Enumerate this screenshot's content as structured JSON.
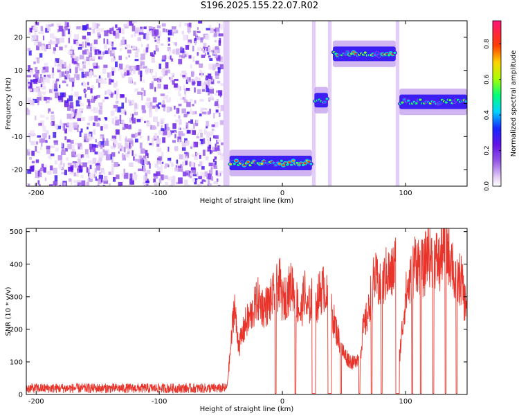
{
  "figure_title": "S196.2025.155.22.07.R02",
  "colorbar": {
    "label": "Normalized spectral amplitude",
    "ticks": [
      "0.0",
      "0.2",
      "0.4",
      "0.6",
      "0.8"
    ],
    "range": [
      0,
      0.93
    ]
  },
  "colors": {
    "snr_line": "#e8342a",
    "spectrogram_low": "#8a2be2",
    "spectrogram_mid": "#00e0ff",
    "spectrogram_high": "#ff1040"
  },
  "chart_data": [
    {
      "type": "heatmap",
      "title": "",
      "xlabel": "Height of straight line (km)",
      "ylabel": "Frequency (Hz)",
      "xlim": [
        -208,
        150
      ],
      "ylim": [
        -25,
        25
      ],
      "x_ticks": [
        -200,
        -100,
        0,
        100
      ],
      "y_ticks": [
        -20,
        -10,
        0,
        10,
        20
      ],
      "noise_region_x": [
        -208,
        -50
      ],
      "segments": [
        {
          "x": [
            -43,
            24
          ],
          "freq": -18,
          "peak_amplitude": 0.9
        },
        {
          "x": [
            26,
            37
          ],
          "freq": 1,
          "peak_amplitude": 0.6
        },
        {
          "x": [
            41,
            92
          ],
          "freq": 15,
          "peak_amplitude": 0.93
        },
        {
          "x": [
            95,
            150
          ],
          "freq": 0.5,
          "peak_amplitude": 0.7
        }
      ]
    },
    {
      "type": "line",
      "title": "",
      "xlabel": "Height of straight line (km)",
      "ylabel": "SNR (10 * v/v)",
      "xlim": [
        -208,
        150
      ],
      "ylim": [
        0,
        510
      ],
      "x_ticks": [
        -200,
        -100,
        0,
        100
      ],
      "y_ticks": [
        0,
        100,
        200,
        300,
        400,
        500
      ],
      "series": [
        {
          "x": [
            -208,
            -190,
            -170,
            -150,
            -130,
            -110,
            -90,
            -70,
            -55,
            -45,
            -42,
            -39,
            -37,
            -35,
            -30,
            -25,
            -20,
            -15,
            -10,
            -5,
            -2,
            0,
            3,
            8,
            12,
            15,
            18,
            20,
            25,
            28,
            30,
            35,
            38,
            40,
            45,
            50,
            55,
            58,
            60,
            63,
            65,
            70,
            72,
            75,
            80,
            85,
            88,
            92,
            95,
            100,
            105,
            108,
            110,
            115,
            118,
            120,
            125,
            128,
            130,
            135,
            138,
            140,
            145,
            148,
            150
          ],
          "y": [
            20,
            22,
            20,
            21,
            20,
            22,
            20,
            21,
            20,
            25,
            150,
            300,
            200,
            160,
            230,
            260,
            310,
            280,
            300,
            340,
            360,
            300,
            320,
            360,
            300,
            260,
            340,
            270,
            320,
            300,
            330,
            350,
            250,
            270,
            190,
            130,
            110,
            100,
            120,
            110,
            200,
            270,
            330,
            380,
            340,
            400,
            380,
            430,
            120,
            320,
            380,
            440,
            430,
            400,
            480,
            450,
            440,
            420,
            480,
            460,
            440,
            350,
            380,
            300,
            300
          ]
        }
      ]
    }
  ]
}
